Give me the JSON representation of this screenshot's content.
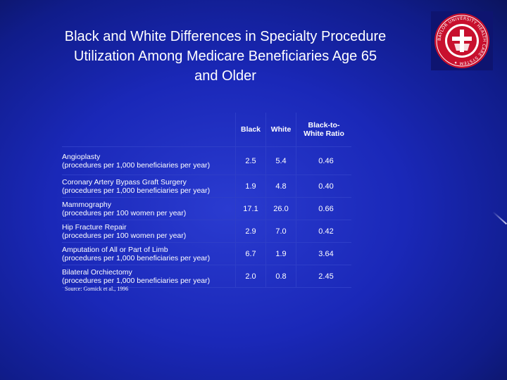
{
  "slide": {
    "title_lines": [
      "Black and White Differences in Specialty Procedure",
      "Utilization Among Medicare Beneficiaries Age 65",
      "and Older"
    ],
    "background_color": "#1a28b8",
    "seal_text": "BAYLOR UNIVERSITY HEALTH CARE SYSTEM",
    "seal_colors": {
      "primary": "#c8102e",
      "secondary": "#ffffff"
    }
  },
  "table": {
    "headers": {
      "procedure": "",
      "black": "Black",
      "white": "White",
      "ratio_line1": "Black-to-",
      "ratio_line2": "White Ratio"
    },
    "rows": [
      {
        "name": "Angioplasty",
        "unit": "(procedures per 1,000 beneficiaries per year)",
        "black": "2.5",
        "white": "5.4",
        "ratio": "0.46"
      },
      {
        "name": "Coronary Artery Bypass Graft Surgery",
        "unit": "(procedures per 1,000 beneficiaries per year)",
        "black": "1.9",
        "white": "4.8",
        "ratio": "0.40"
      },
      {
        "name": "Mammography",
        "unit": "(procedures per 100 women per year)",
        "black": "17.1",
        "white": "26.0",
        "ratio": "0.66"
      },
      {
        "name": "Hip Fracture Repair",
        "unit": "(procedures per 100 women per year)",
        "black": "2.9",
        "white": "7.0",
        "ratio": "0.42"
      },
      {
        "name": "Amputation of All or Part of Limb",
        "unit": "(procedures per 1,000 beneficiaries per year)",
        "black": "6.7",
        "white": "1.9",
        "ratio": "3.64"
      },
      {
        "name": "Bilateral Orchiectomy",
        "unit": "(procedures per 1,000 beneficiaries per year)",
        "black": "2.0",
        "white": "0.8",
        "ratio": "2.45"
      }
    ],
    "source": "Source:  Gornick et al., 1996"
  }
}
